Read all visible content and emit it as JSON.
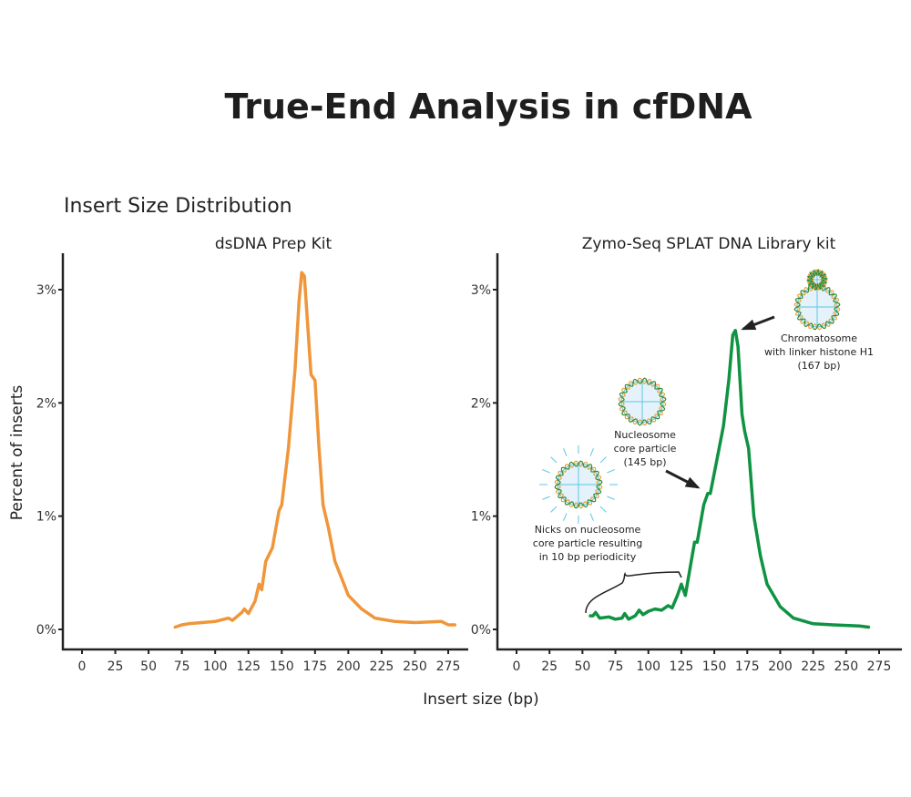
{
  "title": "True-End Analysis in cfDNA",
  "subtitle": "Insert Size Distribution",
  "ylabel": "Percent of inserts",
  "xlabel": "Insert size (bp)",
  "colors": {
    "left_series": "#f0963a",
    "right_series": "#0f9343",
    "axis": "#222222"
  },
  "chart_data": [
    {
      "type": "line",
      "title": "dsDNA Prep Kit",
      "xlim": [
        0,
        285
      ],
      "ylim": [
        0,
        3.2
      ],
      "xticks": [
        0,
        25,
        50,
        75,
        100,
        125,
        150,
        175,
        200,
        225,
        250,
        275
      ],
      "yticks": [
        {
          "v": 0,
          "label": "0%"
        },
        {
          "v": 1,
          "label": "1%"
        },
        {
          "v": 2,
          "label": "2%"
        },
        {
          "v": 3,
          "label": "3%"
        }
      ],
      "grid": false,
      "x": [
        70,
        75,
        80,
        90,
        100,
        110,
        113,
        120,
        122,
        125,
        130,
        133,
        135,
        138,
        143,
        148,
        150,
        155,
        160,
        163,
        165,
        167,
        170,
        172,
        175,
        178,
        181,
        185,
        190,
        195,
        200,
        210,
        220,
        235,
        250,
        270,
        275,
        280
      ],
      "y": [
        0.02,
        0.04,
        0.05,
        0.06,
        0.07,
        0.1,
        0.08,
        0.15,
        0.18,
        0.14,
        0.25,
        0.4,
        0.35,
        0.6,
        0.72,
        1.05,
        1.1,
        1.6,
        2.3,
        2.9,
        3.15,
        3.12,
        2.6,
        2.25,
        2.2,
        1.6,
        1.1,
        0.9,
        0.6,
        0.45,
        0.3,
        0.18,
        0.1,
        0.07,
        0.06,
        0.07,
        0.04,
        0.04
      ]
    },
    {
      "type": "line",
      "title": "Zymo-Seq SPLAT DNA Library kit",
      "xlim": [
        0,
        285
      ],
      "ylim": [
        0,
        3.2
      ],
      "xticks": [
        0,
        25,
        50,
        75,
        100,
        125,
        150,
        175,
        200,
        225,
        250,
        275
      ],
      "yticks": [
        {
          "v": 0,
          "label": "0%"
        },
        {
          "v": 1,
          "label": "1%"
        },
        {
          "v": 2,
          "label": "2%"
        },
        {
          "v": 3,
          "label": "3%"
        }
      ],
      "grid": false,
      "x": [
        56,
        58,
        60,
        63,
        70,
        75,
        80,
        82,
        85,
        90,
        93,
        96,
        100,
        105,
        110,
        115,
        118,
        122,
        125,
        128,
        131,
        135,
        137,
        142,
        145,
        147,
        152,
        157,
        161,
        164,
        166,
        168,
        171,
        173,
        176,
        180,
        185,
        190,
        200,
        210,
        225,
        240,
        260,
        267
      ],
      "y": [
        0.12,
        0.12,
        0.15,
        0.1,
        0.11,
        0.09,
        0.1,
        0.14,
        0.09,
        0.12,
        0.17,
        0.13,
        0.16,
        0.18,
        0.17,
        0.21,
        0.19,
        0.3,
        0.4,
        0.3,
        0.5,
        0.77,
        0.77,
        1.1,
        1.2,
        1.2,
        1.5,
        1.8,
        2.2,
        2.6,
        2.64,
        2.5,
        1.9,
        1.75,
        1.6,
        1.0,
        0.65,
        0.4,
        0.2,
        0.1,
        0.05,
        0.04,
        0.03,
        0.02
      ],
      "annotations": [
        {
          "lines": [
            "Chromatosome",
            "with linker histone H1",
            "(167 bp)"
          ],
          "x": 167
        },
        {
          "lines": [
            "Nucleosome",
            "core particle",
            "(145 bp)"
          ],
          "x": 145
        },
        {
          "lines": [
            "Nicks on nucleosome",
            "core particle resulting",
            "in 10 bp periodicity"
          ],
          "x_range": [
            50,
            125
          ]
        }
      ]
    }
  ]
}
